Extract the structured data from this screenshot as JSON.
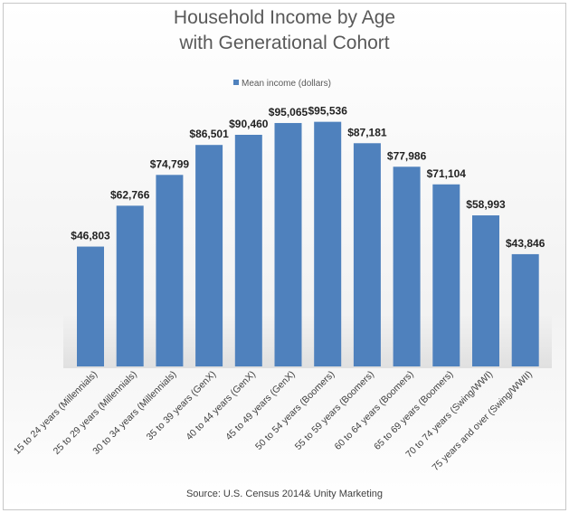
{
  "chart_data": {
    "type": "bar",
    "title": [
      "Household Income by Age",
      "with Generational Cohort"
    ],
    "legend": {
      "label": "Mean income (dollars)",
      "placement": "top"
    },
    "categories": [
      "15 to 24 years (Millennials)",
      "25 to 29 years (Millennials)",
      "30 to 34 years (Millennials)",
      "35 to 39 years (GenX)",
      "40 to 44 years (GenX)",
      "45 to 49 years (GenX)",
      "50 to 54 years (Boomers)",
      "55 to 59 years (Boomers)",
      "60 to 64 years (Boomers)",
      "65 to 69 years (Boomers)",
      "70 to 74 years (Swing/WWI)",
      "75 years and over (Swing/WWII)"
    ],
    "values": [
      46803,
      62766,
      74799,
      86501,
      90460,
      95065,
      95536,
      87181,
      77986,
      71104,
      58993,
      43846
    ],
    "labels": [
      "$46,803",
      "$62,766",
      "$74,799",
      "$86,501",
      "$90,460",
      "$95,065",
      "$95,536",
      "$87,181",
      "$77,986",
      "$71,104",
      "$58,993",
      "$43,846"
    ],
    "ylim": [
      0,
      100000
    ],
    "grid": false,
    "color": "#4f81bd"
  },
  "source": "Source:  U.S. Census   2014& Unity Marketing"
}
